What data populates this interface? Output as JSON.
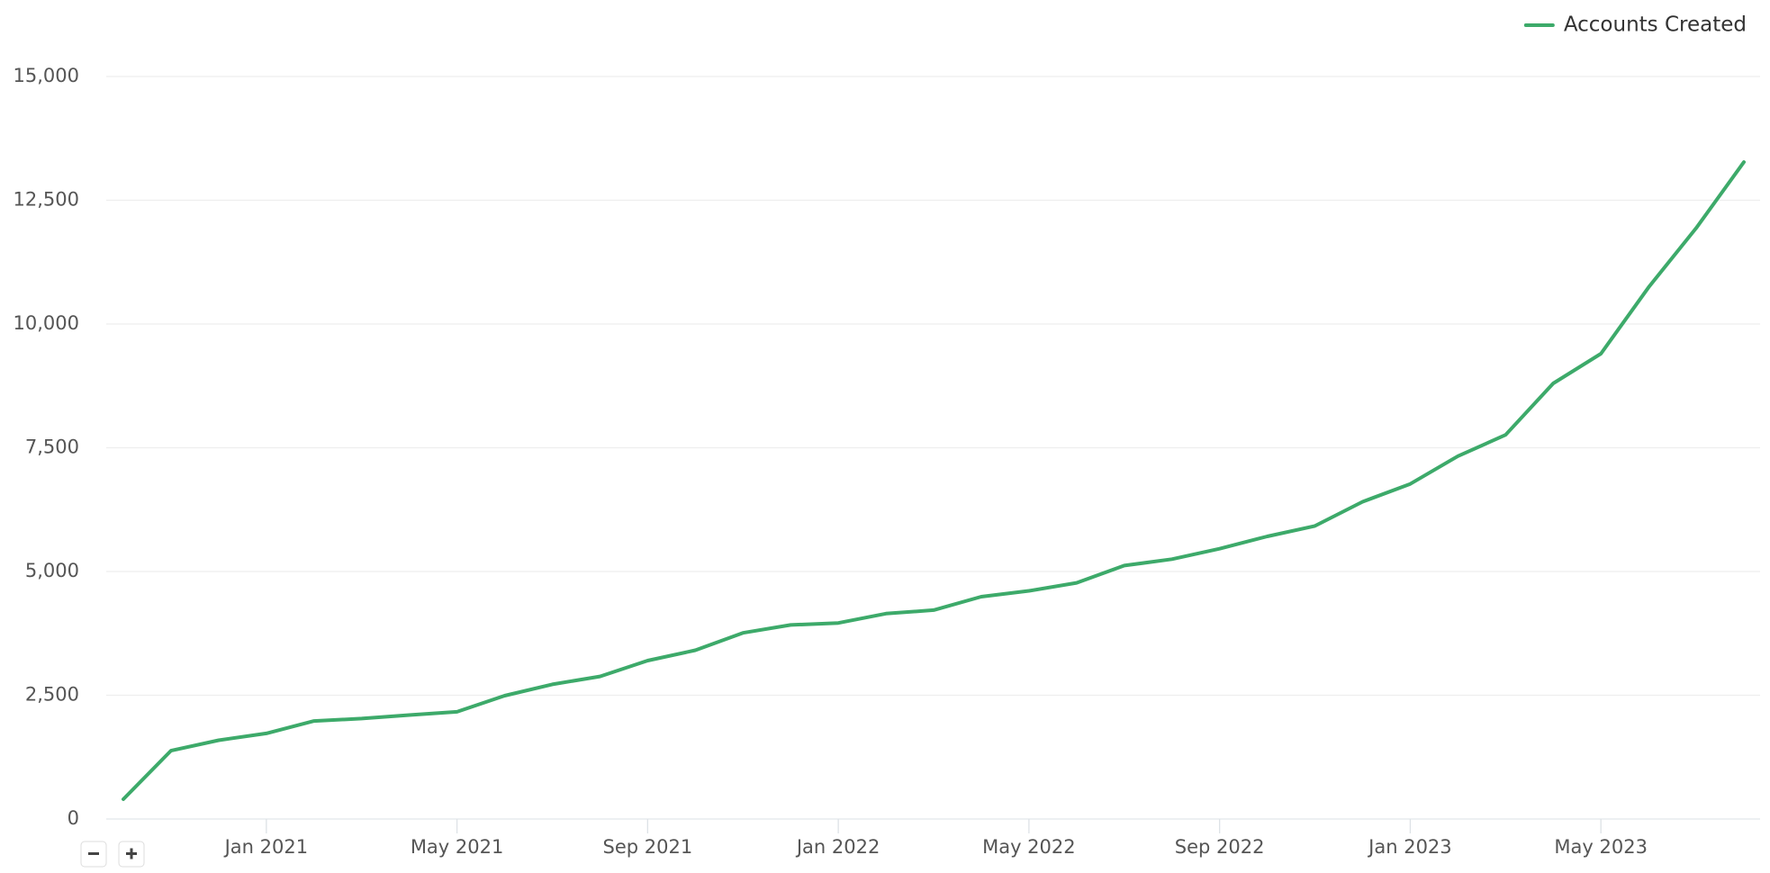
{
  "chart_data": {
    "type": "line",
    "x": [
      "2020-10",
      "2020-11",
      "2020-12",
      "2021-01",
      "2021-02",
      "2021-03",
      "2021-04",
      "2021-05",
      "2021-06",
      "2021-07",
      "2021-08",
      "2021-09",
      "2021-10",
      "2021-11",
      "2021-12",
      "2022-01",
      "2022-02",
      "2022-03",
      "2022-04",
      "2022-05",
      "2022-06",
      "2022-07",
      "2022-08",
      "2022-09",
      "2022-10",
      "2022-11",
      "2022-12",
      "2023-01",
      "2023-02",
      "2023-03",
      "2023-04",
      "2023-05",
      "2023-06",
      "2023-07",
      "2023-08"
    ],
    "series": [
      {
        "name": "Accounts Created",
        "color": "#3daa6a",
        "values": [
          400,
          1380,
          1590,
          1730,
          1980,
          2030,
          2100,
          2165,
          2490,
          2720,
          2880,
          3200,
          3410,
          3760,
          3920,
          3960,
          4150,
          4220,
          4490,
          4610,
          4770,
          5120,
          5250,
          5460,
          5710,
          5920,
          6410,
          6770,
          7330,
          7760,
          8800,
          9400,
          10740,
          11940,
          13270
        ]
      }
    ],
    "xlim": [
      "2020-10",
      "2023-08"
    ],
    "xticks": [
      {
        "value": "2021-01",
        "label": "Jan 2021"
      },
      {
        "value": "2021-05",
        "label": "May 2021"
      },
      {
        "value": "2021-09",
        "label": "Sep 2021"
      },
      {
        "value": "2022-01",
        "label": "Jan 2022"
      },
      {
        "value": "2022-05",
        "label": "May 2022"
      },
      {
        "value": "2022-09",
        "label": "Sep 2022"
      },
      {
        "value": "2023-01",
        "label": "Jan 2023"
      },
      {
        "value": "2023-05",
        "label": "May 2023"
      }
    ],
    "ylim": [
      0,
      15000
    ],
    "yticks": [
      0,
      {
        "value": 2500,
        "label": "2,500"
      },
      {
        "value": 5000,
        "label": "5,000"
      },
      {
        "value": 7500,
        "label": "7,500"
      },
      {
        "value": 10000,
        "label": "10,000"
      },
      {
        "value": 12500,
        "label": "12,500"
      },
      {
        "value": 15000,
        "label": "15,000"
      }
    ],
    "grid": true,
    "legend": "top-right"
  }
}
